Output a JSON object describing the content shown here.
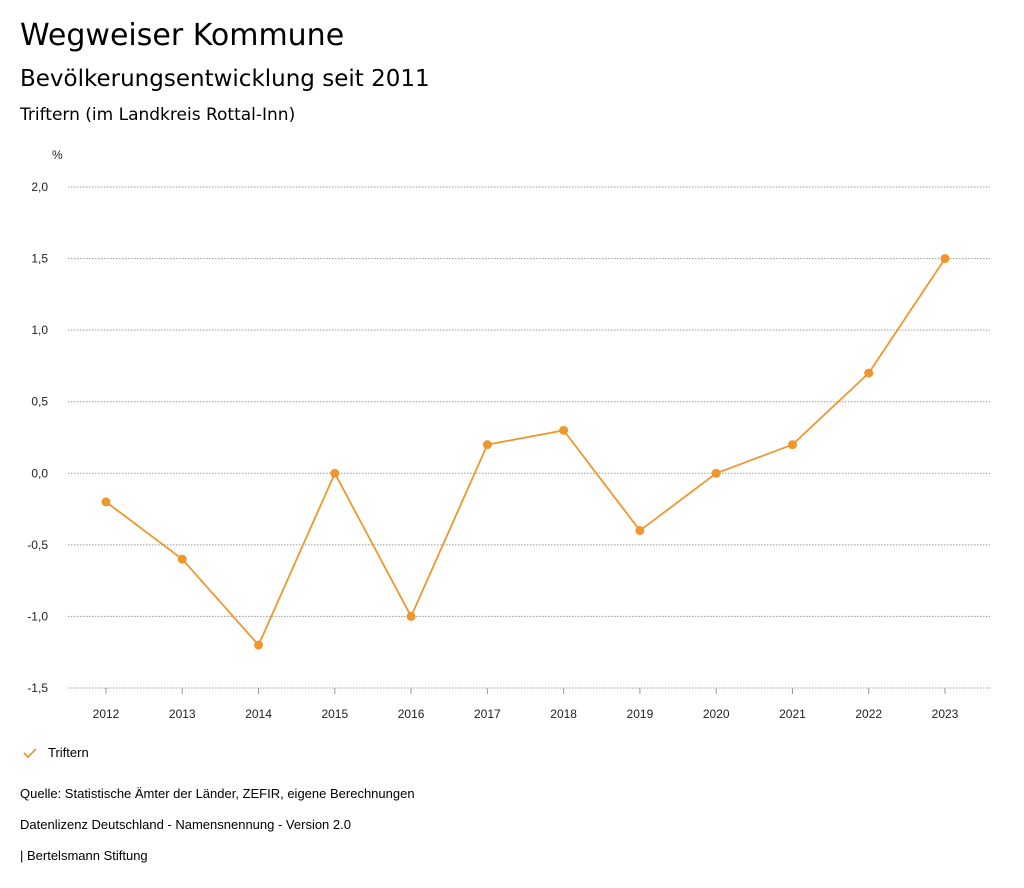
{
  "header": {
    "title": "Wegweiser Kommune",
    "subtitle": "Bevölkerungsentwicklung seit 2011",
    "region": "Triftern (im Landkreis Rottal-Inn)"
  },
  "chart_data": {
    "type": "line",
    "ylabel": "%",
    "ylim": [
      -1.5,
      2.0
    ],
    "yticks": [
      2.0,
      1.5,
      1.0,
      0.5,
      0.0,
      -0.5,
      -1.0,
      -1.5
    ],
    "ytick_labels": [
      "2,0",
      "1,5",
      "1,0",
      "0,5",
      "0,0",
      "-0,5",
      "-1,0",
      "-1,5"
    ],
    "categories": [
      "2012",
      "2013",
      "2014",
      "2015",
      "2016",
      "2017",
      "2018",
      "2019",
      "2020",
      "2021",
      "2022",
      "2023"
    ],
    "series": [
      {
        "name": "Triftern",
        "color": "#f0962e",
        "values": [
          -0.2,
          -0.6,
          -1.2,
          0.0,
          -1.0,
          0.2,
          0.3,
          -0.4,
          0.0,
          0.2,
          0.7,
          1.5
        ]
      }
    ],
    "grid": true,
    "legend": "bottom-left"
  },
  "footer": {
    "source": "Quelle: Statistische Ämter der Länder, ZEFIR, eigene Berechnungen",
    "license": "Datenlizenz Deutschland - Namensnennung - Version 2.0",
    "brand": "| Bertelsmann Stiftung"
  }
}
